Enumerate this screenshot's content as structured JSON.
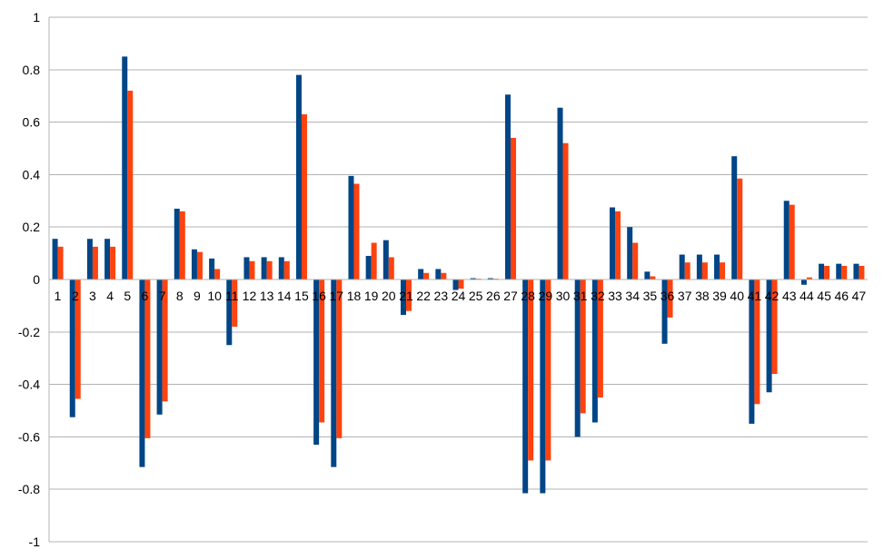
{
  "chart_data": {
    "type": "bar",
    "categories": [
      "1",
      "2",
      "3",
      "4",
      "5",
      "6",
      "7",
      "8",
      "9",
      "10",
      "11",
      "12",
      "13",
      "14",
      "15",
      "16",
      "17",
      "18",
      "19",
      "20",
      "21",
      "22",
      "23",
      "24",
      "25",
      "26",
      "27",
      "28",
      "29",
      "30",
      "31",
      "32",
      "33",
      "34",
      "35",
      "36",
      "37",
      "38",
      "39",
      "40",
      "41",
      "42",
      "43",
      "44",
      "45",
      "46",
      "47"
    ],
    "series": [
      {
        "color": "#004586",
        "values": [
          0.155,
          -0.525,
          0.155,
          0.155,
          0.85,
          -0.715,
          -0.515,
          0.27,
          0.115,
          0.08,
          -0.25,
          0.085,
          0.085,
          0.085,
          0.78,
          -0.63,
          -0.715,
          0.395,
          0.09,
          0.15,
          -0.135,
          0.04,
          0.04,
          -0.04,
          0.005,
          0.005,
          0.705,
          -0.815,
          -0.815,
          0.655,
          -0.6,
          -0.545,
          0.275,
          0.2,
          0.03,
          -0.245,
          0.095,
          0.095,
          0.095,
          0.47,
          -0.55,
          -0.43,
          0.3,
          -0.02,
          0.06,
          0.06,
          0.06
        ]
      },
      {
        "color": "#ff420e",
        "values": [
          0.125,
          -0.455,
          0.125,
          0.125,
          0.72,
          -0.605,
          -0.465,
          0.26,
          0.105,
          0.04,
          -0.18,
          0.07,
          0.07,
          0.07,
          0.63,
          -0.545,
          -0.605,
          0.365,
          0.14,
          0.085,
          -0.12,
          0.025,
          0.025,
          -0.035,
          0.003,
          0.003,
          0.54,
          -0.69,
          -0.69,
          0.52,
          -0.51,
          -0.45,
          0.26,
          0.14,
          0.012,
          -0.145,
          0.065,
          0.065,
          0.065,
          0.385,
          -0.475,
          -0.36,
          0.285,
          0.008,
          0.052,
          0.052,
          0.052
        ]
      }
    ],
    "yticks": [
      "1",
      "0.8",
      "0.6",
      "0.4",
      "0.2",
      "0",
      "-0.2",
      "-0.4",
      "-0.6",
      "-0.8",
      "-1"
    ],
    "ylim": [
      -1,
      1
    ],
    "grid": true,
    "legend": "none",
    "title": "",
    "xlabel": "",
    "ylabel": ""
  }
}
